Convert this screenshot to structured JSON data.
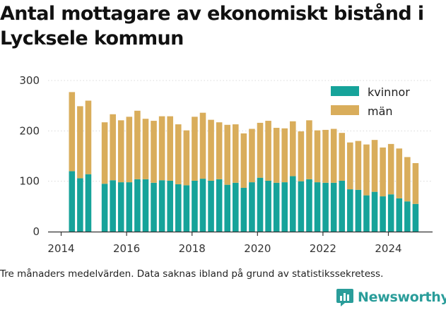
{
  "title": "Antal mottagare av ekonomiskt bistånd i Lycksele kommun",
  "footnote": "Tre månaders medelvärden. Data saknas ibland på grund av statistikssekretess.",
  "brand": "Newsworthy",
  "colors": {
    "kvinnor": "#16a39a",
    "man": "#d9ad5b",
    "axis": "#333333",
    "grid": "#d9d9d9"
  },
  "chart_data": {
    "type": "bar",
    "stacked": true,
    "x_unit": "year",
    "xlim": [
      2013.6,
      2025.35
    ],
    "ylim": [
      0,
      300
    ],
    "yticks": [
      0,
      100,
      200,
      300
    ],
    "xticks": [
      "2014",
      "2016",
      "2018",
      "2020",
      "2022",
      "2024"
    ],
    "legend_position": "top-right",
    "series": [
      {
        "name": "kvinnor",
        "color": "#16a39a"
      },
      {
        "name": "män",
        "color": "#d9ad5b"
      }
    ],
    "x": [
      2014.33,
      2014.58,
      2014.83,
      2015.33,
      2015.58,
      2015.83,
      2016.08,
      2016.33,
      2016.58,
      2016.83,
      2017.08,
      2017.33,
      2017.58,
      2017.83,
      2018.08,
      2018.33,
      2018.58,
      2018.83,
      2019.08,
      2019.33,
      2019.58,
      2019.83,
      2020.08,
      2020.33,
      2020.58,
      2020.83,
      2021.08,
      2021.33,
      2021.58,
      2021.83,
      2022.08,
      2022.33,
      2022.58,
      2022.83,
      2023.08,
      2023.33,
      2023.58,
      2023.83,
      2024.08,
      2024.33,
      2024.58,
      2024.83
    ],
    "kvinnor": [
      120,
      106,
      114,
      95,
      102,
      98,
      98,
      104,
      104,
      97,
      102,
      101,
      94,
      92,
      101,
      105,
      101,
      104,
      93,
      97,
      87,
      98,
      107,
      101,
      97,
      98,
      110,
      100,
      104,
      98,
      97,
      97,
      101,
      84,
      83,
      72,
      79,
      70,
      74,
      66,
      60,
      55
    ],
    "man": [
      157,
      143,
      146,
      122,
      131,
      123,
      130,
      136,
      120,
      123,
      127,
      128,
      119,
      109,
      127,
      131,
      121,
      113,
      119,
      116,
      108,
      106,
      109,
      119,
      109,
      107,
      109,
      99,
      117,
      103,
      105,
      107,
      95,
      93,
      97,
      101,
      103,
      97,
      100,
      99,
      88,
      81
    ]
  }
}
